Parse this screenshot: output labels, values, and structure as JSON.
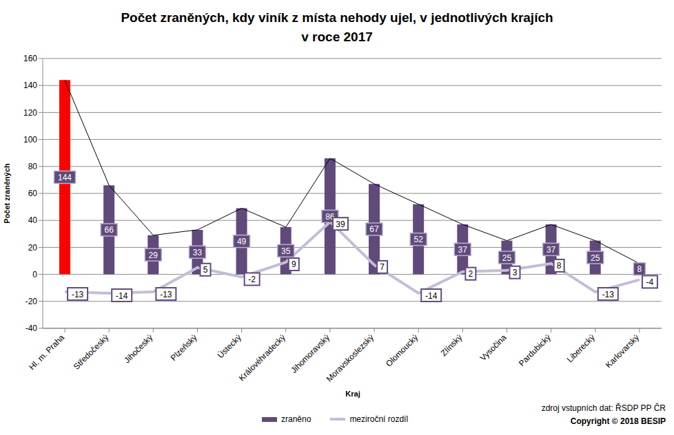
{
  "chart_data": {
    "type": "bar",
    "title": "Počet zraněných, kdy viník z místa nehody ujel, v jednotlivých krajích",
    "subtitle": "v roce 2017",
    "x_label": "Kraj",
    "y_label": "Počet zraněných",
    "categories": [
      "Hl. m. Praha",
      "Středočeský",
      "Jihočeský",
      "Plzeňský",
      "Ústecký",
      "Královéhradecký",
      "Jihomoravský",
      "Moravskoslezský",
      "Olomoucký",
      "Zlínský",
      "Vysočina",
      "Pardubický",
      "Liberecký",
      "Karlovarský"
    ],
    "series": [
      {
        "name": "zraněno",
        "type": "bar",
        "color": "#604a7b",
        "colors": [
          "#ff0000",
          "#604a7b",
          "#604a7b",
          "#604a7b",
          "#604a7b",
          "#604a7b",
          "#604a7b",
          "#604a7b",
          "#604a7b",
          "#604a7b",
          "#604a7b",
          "#604a7b",
          "#604a7b",
          "#604a7b"
        ],
        "values": [
          144,
          66,
          29,
          33,
          49,
          35,
          86,
          67,
          52,
          37,
          25,
          37,
          25,
          8
        ]
      },
      {
        "name": "meziroční rozdíl",
        "type": "line",
        "color": "#c4bdd7",
        "values": [
          -13,
          -14,
          -13,
          5,
          -2,
          9,
          39,
          7,
          -14,
          2,
          3,
          8,
          -13,
          -4
        ]
      }
    ],
    "ylim": [
      -40,
      160
    ],
    "yticks": [
      -40,
      -20,
      0,
      20,
      40,
      60,
      80,
      100,
      120,
      140,
      160
    ],
    "grid": true,
    "legend": "bottom",
    "data_labels": true,
    "annotations": [
      "zdroj vstupních dat: ŘSDP PP ČR",
      "Copyright © 2018 BESIP"
    ]
  }
}
